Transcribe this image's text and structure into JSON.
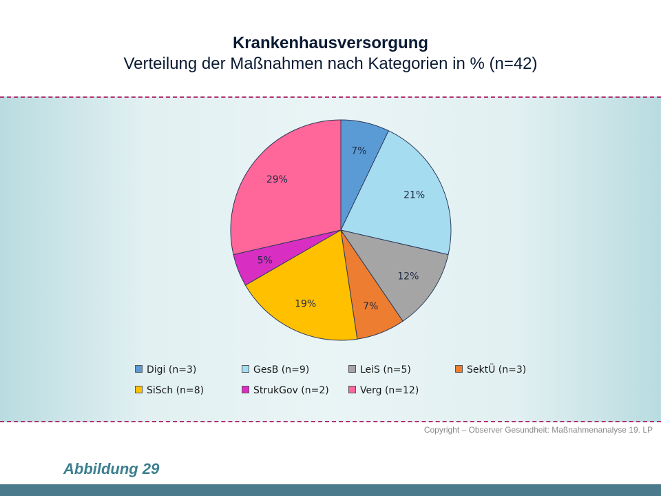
{
  "title": "Krankenhausversorgung",
  "subtitle": "Verteilung der Maßnahmen nach Kategorien in % (n=42)",
  "chart_data": {
    "type": "pie",
    "title": "Krankenhausversorgung",
    "subtitle": "Verteilung der Maßnahmen nach Kategorien in % (n=42)",
    "categories": [
      "Digi (n=3)",
      "GesB (n=9)",
      "LeiS (n=5)",
      "SektÜ (n=3)",
      "SiSch (n=8)",
      "StrukGov (n=2)",
      "Verg (n=12)"
    ],
    "values": [
      3,
      9,
      5,
      3,
      8,
      2,
      12
    ],
    "labels": [
      "7%",
      "21%",
      "12%",
      "7%",
      "19%",
      "5%",
      "29%"
    ],
    "colors": [
      "#5b9bd5",
      "#a6dcf0",
      "#a5a5a5",
      "#ed7d31",
      "#ffc000",
      "#d92ec2",
      "#ff6699"
    ],
    "legend_position": "bottom"
  },
  "copyright": "Copyright – Observer Gesundheit: Maßnahmenanalyse 19. LP",
  "figure_label": "Abbildung 29"
}
